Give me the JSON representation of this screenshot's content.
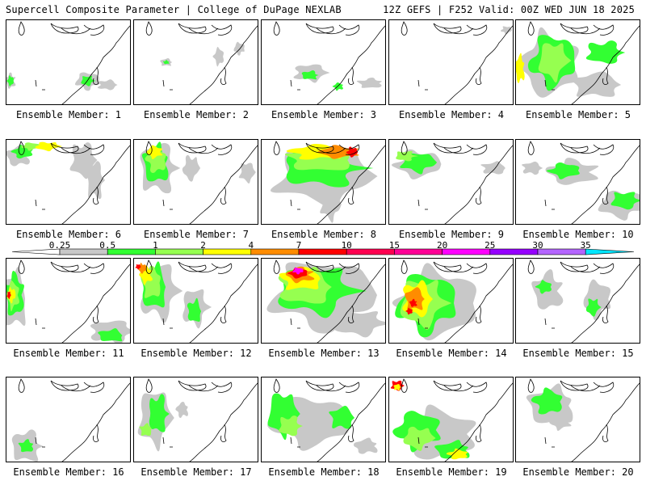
{
  "header": {
    "left": "Supercell Composite Parameter | College of DuPage NEXLAB",
    "right": "12Z GEFS | F252 Valid: 00Z WED JUN 18 2025"
  },
  "panel_label_prefix": "Ensemble Member: ",
  "members": [
    {
      "label": "Ensemble Member: 1",
      "max_level": "1"
    },
    {
      "label": "Ensemble Member: 2",
      "max_level": "0.5"
    },
    {
      "label": "Ensemble Member: 3",
      "max_level": "1"
    },
    {
      "label": "Ensemble Member: 4",
      "max_level": "0.25"
    },
    {
      "label": "Ensemble Member: 5",
      "max_level": "2"
    },
    {
      "label": "Ensemble Member: 6",
      "max_level": "2"
    },
    {
      "label": "Ensemble Member: 7",
      "max_level": "4"
    },
    {
      "label": "Ensemble Member: 8",
      "max_level": "7"
    },
    {
      "label": "Ensemble Member: 9",
      "max_level": "2"
    },
    {
      "label": "Ensemble Member: 10",
      "max_level": "1"
    },
    {
      "label": "Ensemble Member: 11",
      "max_level": "7"
    },
    {
      "label": "Ensemble Member: 12",
      "max_level": "7"
    },
    {
      "label": "Ensemble Member: 13",
      "max_level": "15"
    },
    {
      "label": "Ensemble Member: 14",
      "max_level": "7"
    },
    {
      "label": "Ensemble Member: 15",
      "max_level": "1"
    },
    {
      "label": "Ensemble Member: 16",
      "max_level": "1"
    },
    {
      "label": "Ensemble Member: 17",
      "max_level": "1"
    },
    {
      "label": "Ensemble Member: 18",
      "max_level": "1"
    },
    {
      "label": "Ensemble Member: 19",
      "max_level": "7"
    },
    {
      "label": "Ensemble Member: 20",
      "max_level": "1"
    }
  ],
  "colorbar": {
    "levels": [
      "0.25",
      "0.5",
      "1",
      "2",
      "4",
      "7",
      "10",
      "15",
      "20",
      "25",
      "30",
      "35"
    ],
    "colors": [
      "#c8c8c8",
      "#32ff32",
      "#96ff50",
      "#ffff00",
      "#ff8c00",
      "#ff0000",
      "#ff0050",
      "#ff0096",
      "#ff00ff",
      "#9600ff",
      "#b464ff",
      "#00e6ff"
    ],
    "below_color": "#ffffff"
  }
}
